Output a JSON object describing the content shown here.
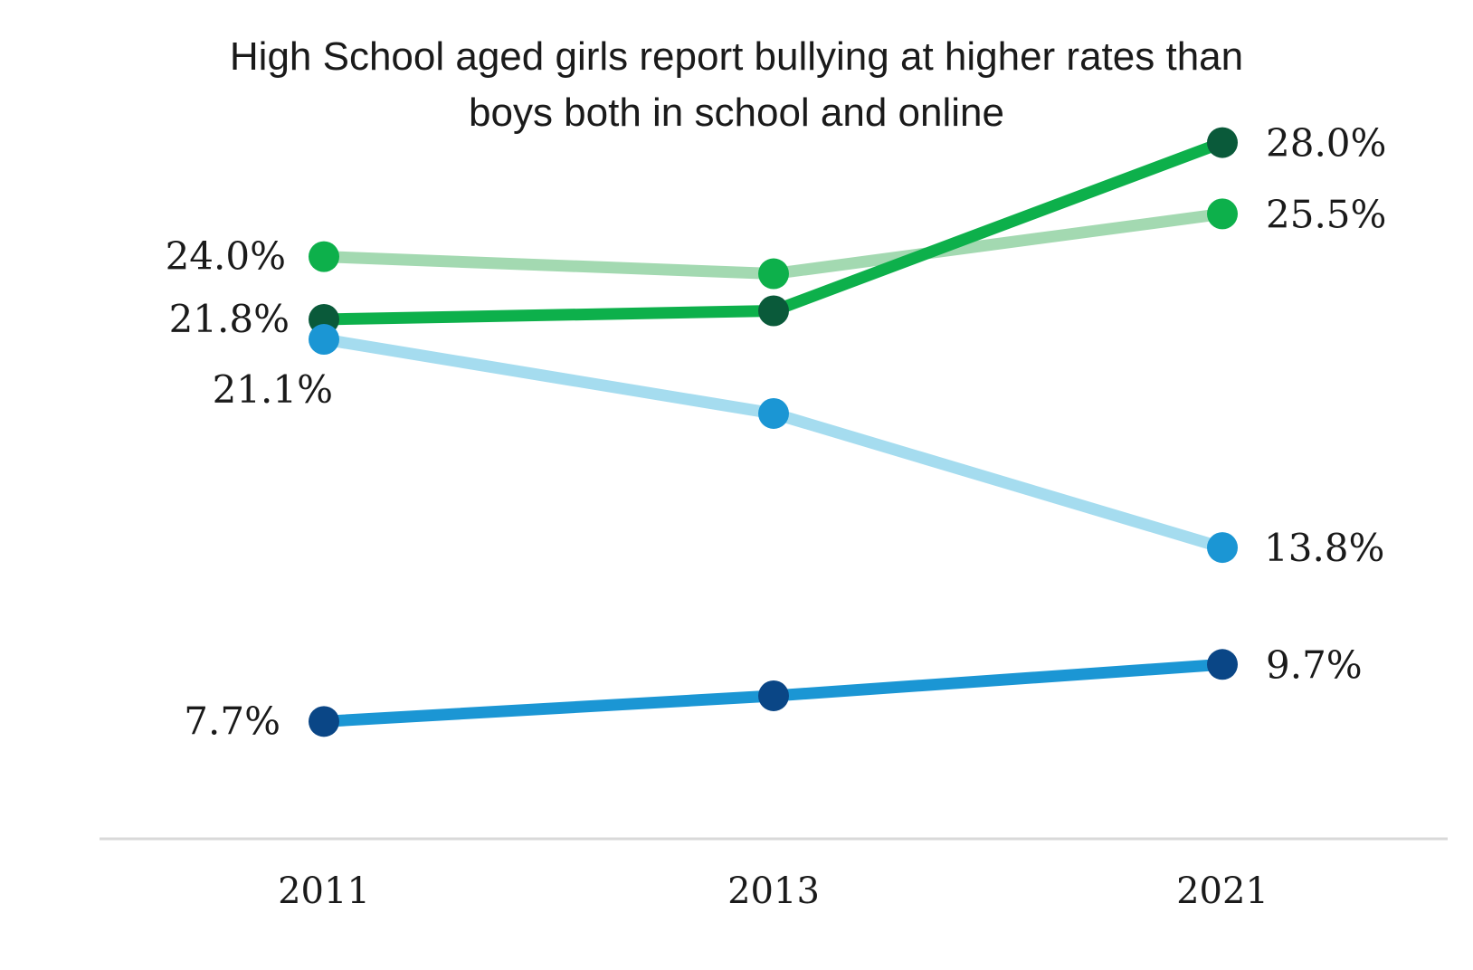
{
  "chart_data": {
    "type": "line",
    "title_line1": "High School aged girls report bullying at higher rates than",
    "title_line2": "boys both in school and online",
    "categories": [
      "2011",
      "2013",
      "2021"
    ],
    "xlabel": "",
    "ylabel": "",
    "ylim": [
      0,
      33
    ],
    "grid": false,
    "legend": "none",
    "series": [
      {
        "name": "series-light-green",
        "values": [
          24.0,
          23.4,
          25.5
        ],
        "line_color": "#a3d9b1",
        "dot_color": "#0db04b",
        "labels": {
          "0": "24.0%",
          "2": "25.5%"
        }
      },
      {
        "name": "series-dark-green",
        "values": [
          21.8,
          22.1,
          28.0
        ],
        "line_color": "#0db04b",
        "dot_color": "#0a5a3a",
        "labels": {
          "0": "21.8%",
          "2": "28.0%"
        }
      },
      {
        "name": "series-light-blue",
        "values": [
          21.1,
          18.5,
          13.8
        ],
        "line_color": "#a5dcef",
        "dot_color": "#1b96d4",
        "labels": {
          "0": "21.1%",
          "2": "13.8%"
        }
      },
      {
        "name": "series-dark-blue",
        "values": [
          7.7,
          8.6,
          9.7
        ],
        "line_color": "#1b96d4",
        "dot_color": "#0a4686",
        "labels": {
          "0": "7.7%",
          "2": "9.7%"
        }
      }
    ],
    "axis_line_color": "#d9d9d9"
  }
}
